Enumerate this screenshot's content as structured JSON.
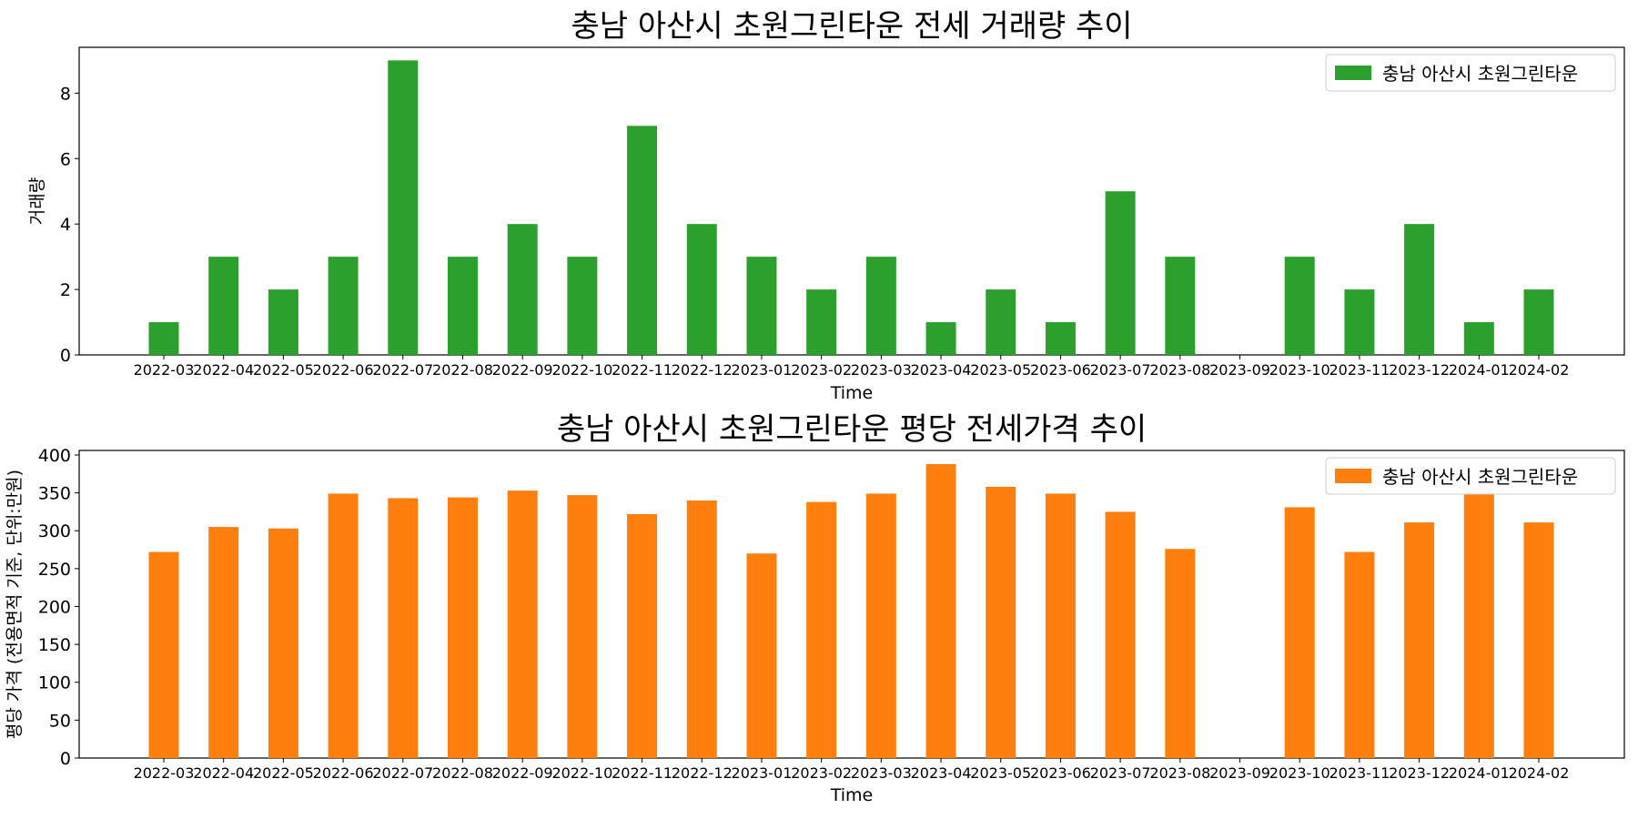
{
  "chart_data": [
    {
      "type": "bar",
      "title": "충남 아산시 초원그린타운 전세 거래량 추이",
      "xlabel": "Time",
      "ylabel": "거래량",
      "ylim": [
        0,
        9.4
      ],
      "yticks": [
        0,
        2,
        4,
        6,
        8
      ],
      "legend_position": "top-right",
      "grid": false,
      "categories": [
        "2022-03",
        "2022-04",
        "2022-05",
        "2022-06",
        "2022-07",
        "2022-08",
        "2022-09",
        "2022-10",
        "2022-11",
        "2022-12",
        "2023-01",
        "2023-02",
        "2023-03",
        "2023-04",
        "2023-05",
        "2023-06",
        "2023-07",
        "2023-08",
        "2023-09",
        "2023-10",
        "2023-11",
        "2023-12",
        "2024-01",
        "2024-02"
      ],
      "series": [
        {
          "name": "충남 아산시 초원그린타운",
          "color": "#2ca02c",
          "values": [
            1,
            3,
            2,
            3,
            9,
            3,
            4,
            3,
            7,
            4,
            3,
            2,
            3,
            1,
            2,
            1,
            5,
            3,
            0,
            3,
            2,
            4,
            1,
            2
          ]
        }
      ]
    },
    {
      "type": "bar",
      "title": "충남 아산시 초원그린타운 평당 전세가격 추이",
      "xlabel": "Time",
      "ylabel": "평당 가격 (전용면적 기준, 단위:만원)",
      "ylim": [
        0,
        406
      ],
      "yticks": [
        0,
        50,
        100,
        150,
        200,
        250,
        300,
        350,
        400
      ],
      "legend_position": "top-right",
      "grid": false,
      "categories": [
        "2022-03",
        "2022-04",
        "2022-05",
        "2022-06",
        "2022-07",
        "2022-08",
        "2022-09",
        "2022-10",
        "2022-11",
        "2022-12",
        "2023-01",
        "2023-02",
        "2023-03",
        "2023-04",
        "2023-05",
        "2023-06",
        "2023-07",
        "2023-08",
        "2023-09",
        "2023-10",
        "2023-11",
        "2023-12",
        "2024-01",
        "2024-02"
      ],
      "series": [
        {
          "name": "충남 아산시 초원그린타운",
          "color": "#ff7f0e",
          "values": [
            272,
            305,
            303,
            349,
            343,
            344,
            353,
            347,
            322,
            340,
            270,
            338,
            349,
            388,
            358,
            349,
            325,
            276,
            null,
            331,
            272,
            311,
            348,
            311
          ]
        }
      ]
    }
  ]
}
